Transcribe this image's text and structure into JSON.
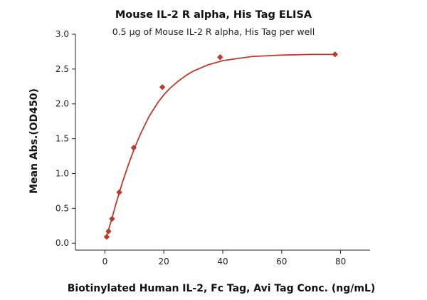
{
  "chart_data": {
    "type": "scatter",
    "title": "Mouse IL-2 R alpha, His Tag ELISA",
    "subtitle": "0.5 μg of Mouse IL-2 R alpha, His Tag per well",
    "xlabel": "Biotinylated Human IL-2, Fc Tag, Avi Tag Conc. (ng/mL)",
    "ylabel": "Mean Abs.(OD450)",
    "xlim": [
      -10,
      90
    ],
    "ylim": [
      -0.1,
      3.0
    ],
    "x_ticks": [
      0,
      20,
      40,
      60,
      80
    ],
    "y_ticks": [
      0.0,
      0.5,
      1.0,
      1.5,
      2.0,
      2.5,
      3.0
    ],
    "x_tick_labels": [
      "0",
      "20",
      "40",
      "60",
      "80"
    ],
    "y_tick_labels": [
      "0.0",
      "0.5",
      "1.0",
      "1.5",
      "2.0",
      "2.5",
      "3.0"
    ],
    "grid": false,
    "marker": "diamond",
    "color": "#c0392b",
    "series": [
      {
        "x": [
          0.61,
          1.22,
          2.44,
          4.88,
          9.77,
          19.5,
          39.1,
          78.1
        ],
        "y": [
          0.09,
          0.17,
          0.35,
          0.73,
          1.37,
          2.24,
          2.67,
          2.71
        ]
      }
    ],
    "fit_curve": {
      "x": [
        0.3,
        1,
        2,
        3,
        4,
        5,
        6,
        8,
        10,
        12,
        15,
        18,
        20,
        22,
        25,
        28,
        30,
        35,
        40,
        50,
        60,
        70,
        78.1
      ],
      "y": [
        0.08,
        0.16,
        0.3,
        0.45,
        0.6,
        0.74,
        0.88,
        1.13,
        1.36,
        1.56,
        1.82,
        2.02,
        2.13,
        2.22,
        2.33,
        2.42,
        2.47,
        2.56,
        2.62,
        2.68,
        2.7,
        2.71,
        2.71
      ]
    }
  }
}
